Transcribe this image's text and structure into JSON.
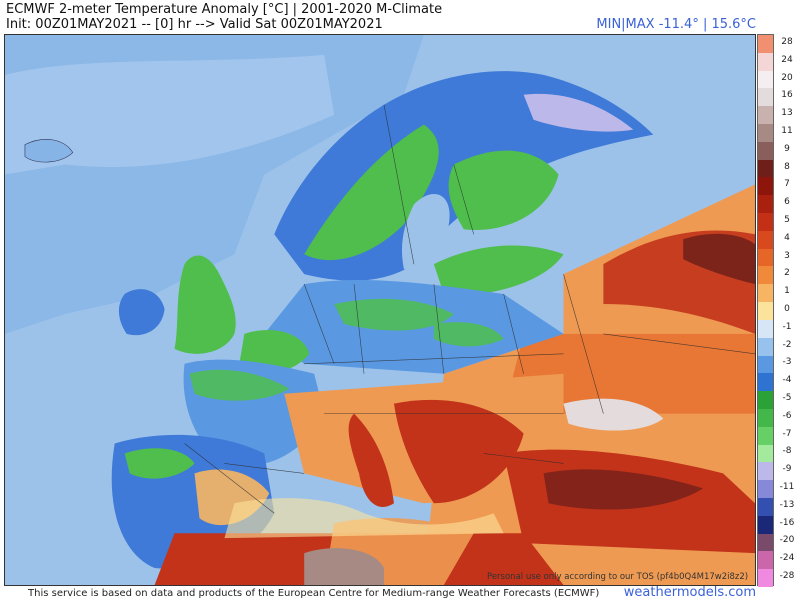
{
  "header": {
    "title": "ECMWF 2-meter Temperature Anomaly [°C] | 2001-2020 M-Climate",
    "subtitle": "Init: 00Z01MAY2021 -- [0] hr --> Valid Sat 00Z01MAY2021",
    "minmax": "MIN|MAX -11.4° | 15.6°C"
  },
  "legend": {
    "levels": [
      {
        "label": "28",
        "color": "#f09070"
      },
      {
        "label": "24",
        "color": "#f5d6d6"
      },
      {
        "label": "20",
        "color": "#f4eef0"
      },
      {
        "label": "16",
        "color": "#e4dcdc"
      },
      {
        "label": "13",
        "color": "#c9b2ae"
      },
      {
        "label": "11",
        "color": "#a78a84"
      },
      {
        "label": "9",
        "color": "#8a5e5a"
      },
      {
        "label": "8",
        "color": "#6e1f1a"
      },
      {
        "label": "7",
        "color": "#8d150c"
      },
      {
        "label": "6",
        "color": "#a9200e"
      },
      {
        "label": "5",
        "color": "#c43015"
      },
      {
        "label": "4",
        "color": "#d8491d"
      },
      {
        "label": "3",
        "color": "#e66628"
      },
      {
        "label": "2",
        "color": "#f08a3a"
      },
      {
        "label": "1",
        "color": "#f7b563"
      },
      {
        "label": "0",
        "color": "#fbe39b"
      },
      {
        "label": "-1",
        "color": "#d6e6f6"
      },
      {
        "label": "-2",
        "color": "#98c2ee"
      },
      {
        "label": "-3",
        "color": "#5a99e2"
      },
      {
        "label": "-4",
        "color": "#2f73d2"
      },
      {
        "label": "-5",
        "color": "#2aa238"
      },
      {
        "label": "-6",
        "color": "#44b74a"
      },
      {
        "label": "-7",
        "color": "#66d066"
      },
      {
        "label": "-8",
        "color": "#a3ea9d"
      },
      {
        "label": "-9",
        "color": "#bcb8ea"
      },
      {
        "label": "-11",
        "color": "#8888d8"
      },
      {
        "label": "-13",
        "color": "#3350b0"
      },
      {
        "label": "-16",
        "color": "#1b2878"
      },
      {
        "label": "-20",
        "color": "#7a4a6a"
      },
      {
        "label": "-24",
        "color": "#cc66aa"
      },
      {
        "label": "-28",
        "color": "#f08ae0"
      }
    ]
  },
  "map": {
    "ocean_color": "#9cc2ea",
    "cold_color": "#3f7ad8",
    "green_color": "#4fbe4c",
    "warm_color": "#ef9a52",
    "hot_color": "#c2331a",
    "neutral_color": "#d9dcd8"
  },
  "footer": {
    "disclaimer": "Personal use only according to our TOS (pf4b0Q4M17w2i8z2)",
    "source_note": "This service is based on data and products of the European Centre for Medium-range Weather Forecasts (ECMWF)",
    "site": "weathermodels.com"
  }
}
